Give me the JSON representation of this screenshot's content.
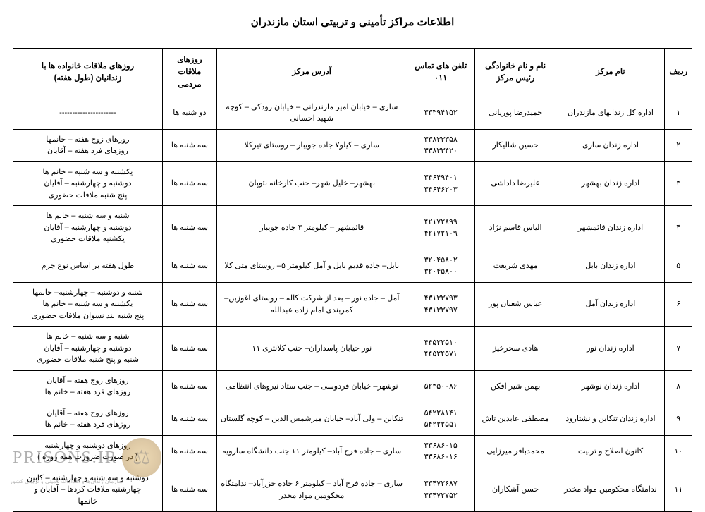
{
  "title": "اطلاعات مراکز تأمینی و تربیتی استان مازندران",
  "table": {
    "columns": [
      "ردیف",
      "نام مرکز",
      "نام و نام خانوادگی\nرئیس مرکز",
      "تلفن های تماس\n۰۱۱",
      "آدرس مرکز",
      "روزهای\nملاقات\nمردمی",
      "روزهای ملاقات خانواده ها با\nزندانیان (طول هفته)"
    ],
    "rows": [
      {
        "idx": "۱",
        "center": "اداره کل زندانهای مازندران",
        "head": "حمیدرضا پوریانی",
        "phone": "۳۳۳۹۴۱۵۲",
        "addr": "ساری – خیابان امیر مازندرانی – خیابان رودکی – کوچه شهید احسانی",
        "days": "دو شنبه ها",
        "family": "----------------------"
      },
      {
        "idx": "۲",
        "center": "اداره زندان ساری",
        "head": "حسین شالیکار",
        "phone": "۳۳۸۳۳۳۵۸\n۳۳۸۳۳۴۲۰",
        "addr": "ساری – کیلو۷ جاده جویبار – روستای تیرکلا",
        "days": "سه شنبه ها",
        "family": "روزهای زوج هفته – خانمها\nروزهای فرد هفته – آقایان"
      },
      {
        "idx": "۳",
        "center": "اداره زندان بهشهر",
        "head": "علیرضا داداشی",
        "phone": "۳۴۶۴۹۴۰۱\n۳۴۶۴۶۲۰۳",
        "addr": "بهشهر– خلیل شهر– جنب کارخانه نئوپان",
        "days": "سه شنبه ها",
        "family": "یکشنبه و سه شنبه – خانم ها\nدوشنبه و چهارشنبه – آقایان\nپنج شنبه ملاقات حضوری"
      },
      {
        "idx": "۴",
        "center": "اداره زندان قائمشهر",
        "head": "الیاس قاسم نژاد",
        "phone": "۴۲۱۷۲۸۹۹\n۴۲۱۷۲۱۰۹",
        "addr": "قائمشهر – کیلومتر ۳ جاده جویبار",
        "days": "سه شنبه ها",
        "family": "شنبه و سه شنبه – خانم ها\nدوشنبه و چهارشنبه – آقایان\nیکشنبه ملاقات حضوری"
      },
      {
        "idx": "۵",
        "center": "اداره زندان بابل",
        "head": "مهدی شریعت",
        "phone": "۳۲۰۴۵۸۰۲\n۳۲۰۴۵۸۰۰",
        "addr": "بابل– جاده قدیم بابل و آمل کیلومتر ۵– روستای متی کلا",
        "days": "سه شنبه ها",
        "family": "طول هفته بر اساس نوع جرم"
      },
      {
        "idx": "۶",
        "center": "اداره زندان آمل",
        "head": "عباس شعبان پور",
        "phone": "۴۳۱۳۳۷۹۳\n۴۳۱۳۳۷۹۷",
        "addr": "آمل – جاده نور – بعد از شرکت کاله – روستای اغوزبن– کمربندی امام زاده عبدالله",
        "days": "سه شنبه ها",
        "family": "شنبه و دوشنبه – چهارشنبه– خانمها\nیکشنبه و سه شنبه – خانم ها\nپنج شنبه بند نسوان ملاقات حضوری"
      },
      {
        "idx": "۷",
        "center": "اداره زندان نور",
        "head": "هادی سحرخیز",
        "phone": "۴۴۵۲۲۵۱۰\n۴۴۵۲۴۵۷۱",
        "addr": "نور خیابان پاسداران– جنب کلانتری ۱۱",
        "days": "سه شنبه ها",
        "family": "شنبه و سه شنبه – خانم ها\nدوشنبه و چهارشنبه – آقایان\nشنبه و پنج شنبه ملاقات حضوری"
      },
      {
        "idx": "۸",
        "center": "اداره زندان نوشهر",
        "head": "بهمن شیر افکن",
        "phone": "۵۲۳۵۰۰۸۶",
        "addr": "نوشهر– خیابان فردوسی – جنب ستاد نیروهای انتظامی",
        "days": "سه شنبه ها",
        "family": "روزهای زوج هفته – آقایان\nروزهای فرد هفته – خانم ها"
      },
      {
        "idx": "۹",
        "center": "اداره زندان تنکابن و نشتارود",
        "head": "مصطفی عابدین تاش",
        "phone": "۵۴۲۲۸۱۴۱\n۵۴۲۲۲۵۵۱",
        "addr": "تنکابن – ولی آباد– خیابان میرشمس الدین – کوچه گلستان",
        "days": "سه شنبه ها",
        "family": "روزهای زوج هفته – آقایان\nروزهای فرد هفته – خانم ها"
      },
      {
        "idx": "۱۰",
        "center": "کانون اصلاح و تربیت",
        "head": "محمدباقر میرزایی",
        "phone": "۳۳۶۸۶۰۱۵\n۳۳۶۸۶۰۱۶",
        "addr": "ساری – جاده فرح آباد– کیلومتر ۱۱ جنب دانشگاه سارویه",
        "days": "سه شنبه ها",
        "family": "روزهای دوشنبه و چهارشنبه\n( در صورت ضرورت همه روزه )"
      },
      {
        "idx": "۱۱",
        "center": "ندامتگاه محکومین مواد مخدر",
        "head": "حسن آشکاران",
        "phone": "۳۳۴۷۲۶۸۷\n۳۳۴۷۲۷۵۲",
        "addr": "ساری – جاده فرح آباد – کیلومتر ۶ جاده خزرآباد– ندامتگاه محکومین مواد مخدر",
        "days": "سه شنبه ها",
        "family": "دوشنبه و سه شنبه و چهارشنبه – کابین\nچهارشنبه ملاقات کردها – آقایان و\nخانمها"
      }
    ]
  },
  "watermark": {
    "text": "PRISONS.IR",
    "sub": "سازمان زندان‌ها و اقدامات تأمینی و تربیتی کشور"
  },
  "style": {
    "background_color": "#ffffff",
    "border_color": "#000000",
    "title_fontsize": 15,
    "cell_fontsize": 11,
    "header_fontsize": 11.5
  }
}
